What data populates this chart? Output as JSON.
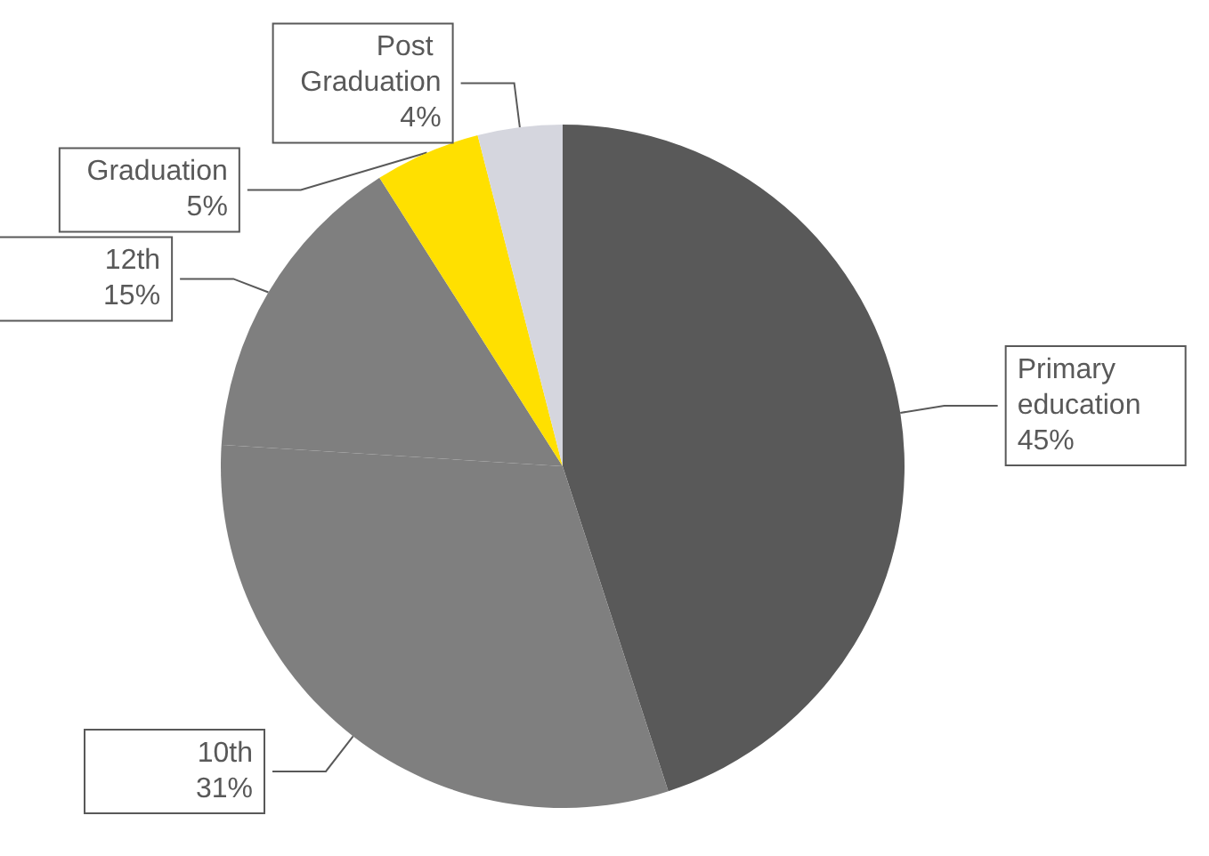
{
  "chart_data": {
    "type": "pie",
    "categories": [
      "Primary education",
      "10th",
      "12th",
      "Graduation",
      "Post Graduation"
    ],
    "values": [
      45,
      31,
      15,
      5,
      4
    ],
    "value_labels": [
      "45%",
      "31%",
      "15%",
      "5%",
      "4%"
    ],
    "colors": [
      "#595959",
      "#7f7f7f",
      "#7f7f7f",
      "#ffe000",
      "#d5d6de"
    ],
    "legend": false
  }
}
